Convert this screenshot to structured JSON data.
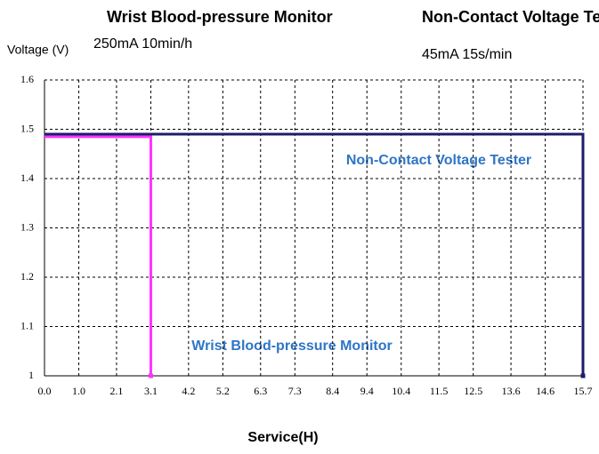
{
  "chart_data": {
    "type": "line",
    "y_label": "Voltage (V)",
    "x_label": "Service(H)",
    "xlim": [
      0,
      15.7
    ],
    "ylim": [
      1,
      1.6
    ],
    "xticks": [
      {
        "value": 0,
        "label": "0.0"
      },
      {
        "value": 1,
        "label": "1.0"
      },
      2.1,
      3.1,
      4.2,
      5.2,
      6.3,
      7.3,
      8.4,
      9.4,
      10.4,
      11.5,
      12.5,
      13.6,
      14.6,
      15.7
    ],
    "yticks": [
      1,
      1.1,
      1.2,
      1.3,
      1.4,
      1.5,
      1.6
    ],
    "grid": true,
    "series": [
      {
        "name": "Wrist Blood-pressure Monitor",
        "load": "250mA 10min/h",
        "color": "#ff33ff",
        "x": [
          0,
          3.1,
          3.1
        ],
        "values": [
          1.485,
          1.485,
          1
        ]
      },
      {
        "name": "Non-Contact Voltage Tester",
        "load": "45mA 15s/min",
        "color": "#1c1c6c",
        "x": [
          0,
          15.7,
          15.7
        ],
        "values": [
          1.49,
          1.49,
          1
        ]
      }
    ]
  }
}
